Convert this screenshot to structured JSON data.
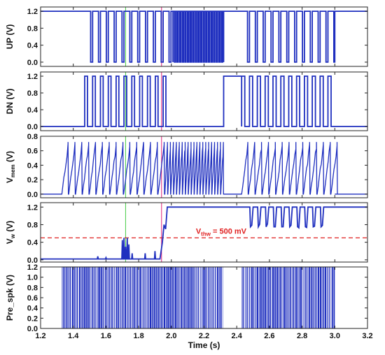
{
  "chart_data": {
    "type": "line",
    "xlabel": "Time (s)",
    "xlim": [
      1.2,
      3.2
    ],
    "xticks": [
      "1.2",
      "1.4",
      "1.6",
      "1.8",
      "2.0",
      "2.2",
      "2.4",
      "2.6",
      "2.8",
      "3.0",
      "3.2"
    ],
    "series_color": "#1f2fbf",
    "markers": [
      {
        "x": 1.72,
        "color": "#44cc44"
      },
      {
        "x": 1.94,
        "color": "#e0207a"
      }
    ],
    "panels": [
      {
        "id": "up",
        "ylabel": "UP (V)",
        "ylim": [
          -0.1,
          1.3
        ],
        "yticks": [
          "0.0",
          "0.4",
          "0.8",
          "1.2"
        ],
        "kind": "pulses",
        "base": 0.0,
        "level": 1.2,
        "segments": [
          {
            "start": 1.2,
            "end": 1.47,
            "state": "high"
          },
          {
            "start": 1.47,
            "end": 2.01,
            "period": 0.048,
            "duty": 0.75
          },
          {
            "start": 2.01,
            "end": 2.32,
            "period": 0.016,
            "duty": 0.55
          },
          {
            "start": 2.32,
            "end": 2.43,
            "state": "high"
          },
          {
            "start": 2.43,
            "end": 3.0,
            "period": 0.048,
            "duty": 0.75
          },
          {
            "start": 3.0,
            "end": 3.2,
            "state": "high"
          }
        ]
      },
      {
        "id": "dn",
        "ylabel": "DN (V)",
        "ylim": [
          -0.1,
          1.3
        ],
        "yticks": [
          "0.0",
          "0.4",
          "0.8",
          "1.2"
        ],
        "kind": "pulses",
        "base": 0.0,
        "level": 1.2,
        "segments": [
          {
            "start": 1.2,
            "end": 1.47,
            "state": "low"
          },
          {
            "start": 1.47,
            "end": 1.96,
            "period": 0.048,
            "duty": 0.35
          },
          {
            "start": 1.96,
            "end": 2.32,
            "state": "low"
          },
          {
            "start": 2.32,
            "end": 2.43,
            "state": "high"
          },
          {
            "start": 2.43,
            "end": 3.0,
            "period": 0.048,
            "duty": 0.4
          },
          {
            "start": 3.0,
            "end": 3.2,
            "state": "low"
          }
        ]
      },
      {
        "id": "vmem",
        "ylabel": "V",
        "ylabel_sub": "mem",
        "ylabel_suffix": " (V)",
        "ylim": [
          -0.05,
          0.8
        ],
        "yticks": [
          "0.0",
          "0.2",
          "0.4",
          "0.6",
          "0.8"
        ],
        "kind": "sawtooth",
        "base": 0.0,
        "segments": [
          {
            "start": 1.33,
            "end": 1.96,
            "period": 0.042,
            "peak": 0.72
          },
          {
            "start": 1.96,
            "end": 2.32,
            "period": 0.018,
            "peak": 0.72
          },
          {
            "start": 2.43,
            "end": 3.0,
            "period": 0.042,
            "peak": 0.72
          }
        ]
      },
      {
        "id": "vw",
        "ylabel": "V",
        "ylabel_sub": "w",
        "ylabel_suffix": " (V)",
        "ylim": [
          -0.05,
          1.3
        ],
        "yticks": [
          "0.0",
          "0.4",
          "0.8",
          "1.2"
        ],
        "kind": "vw",
        "threshold": 0.5,
        "threshold_label": "V",
        "threshold_label_sub": "thw",
        "threshold_label_suffix": " = 500 mV",
        "threshold_color": "#e02020"
      },
      {
        "id": "prespk",
        "ylabel": "Pre_spk (V)",
        "ylim": [
          0.0,
          1.2
        ],
        "yticks": [
          "0.0",
          "0.2",
          "0.4",
          "0.6",
          "0.8",
          "1.0",
          "1.2"
        ],
        "kind": "spikes",
        "level": 1.2,
        "segments": [
          {
            "start": 1.33,
            "end": 2.32
          },
          {
            "start": 2.43,
            "end": 3.0
          }
        ]
      }
    ]
  }
}
